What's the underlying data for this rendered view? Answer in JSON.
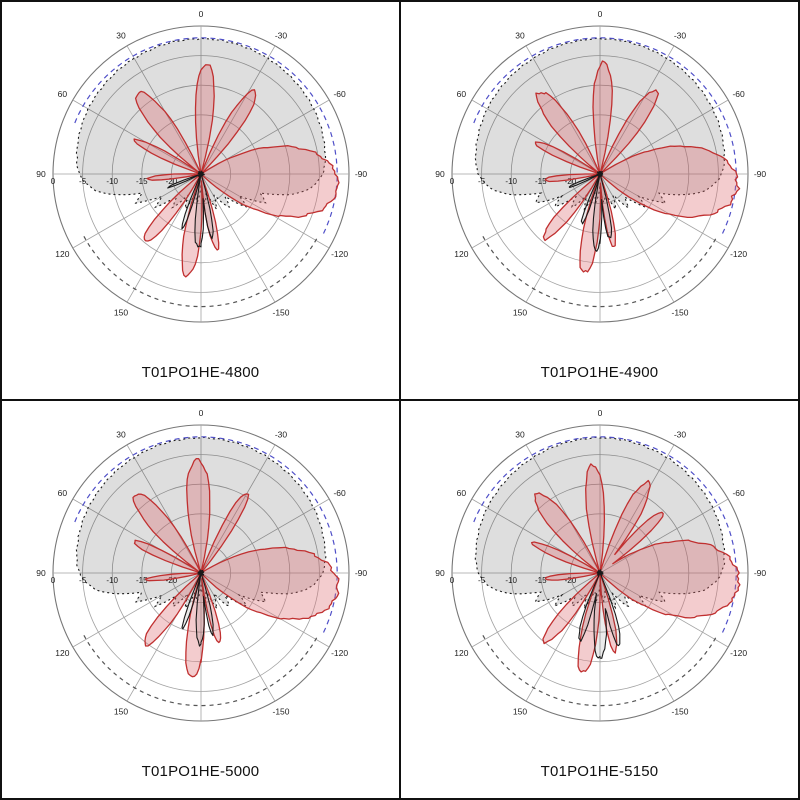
{
  "chart_data": {
    "type": "polar",
    "description": "2x2 grid of antenna radiation pattern polar plots at four frequencies",
    "angle_ticks_deg": [
      0,
      -30,
      -60,
      -90,
      -120,
      -150,
      150,
      120,
      90,
      60,
      30
    ],
    "angle_tick_labels": [
      "0",
      "-30",
      "-60",
      "-90",
      "-120",
      "-150",
      "150",
      "120",
      "90",
      "60",
      "30"
    ],
    "radial_ticks_db": [
      0,
      -5,
      -10,
      -15,
      -20
    ],
    "radial_tick_labels": [
      "0",
      "-5",
      "-10",
      "-15",
      "-20"
    ],
    "r_min_db": -25,
    "grid": true,
    "colors": {
      "grid": "#a3a3a3",
      "outer_ring": "#777777",
      "envelope_fill": "rgba(0,0,0,0.13)",
      "envelope_stroke": "#1a1a1a",
      "copol_stroke": "#c03030",
      "copol_fill": "rgba(222,110,115,0.35)",
      "crosspol_stroke": "#1a1a1a",
      "crosspol_fill": "rgba(60,60,60,0.10)",
      "ref_arc_blue": "#5050c8",
      "ref_arc_dark": "#555555"
    },
    "reference_arcs": [
      {
        "name": "blue-dashed-arc",
        "r_db": -2.0,
        "start_deg": 68,
        "end_deg": -116,
        "color": "#5050c8",
        "dash": "5 4"
      },
      {
        "name": "dark-dashed-arc",
        "r_db": -2.6,
        "start_deg": 118,
        "end_deg": 242,
        "color": "#555555",
        "dash": "4 4"
      }
    ],
    "envelope_points": [
      [
        -180,
        -23
      ],
      [
        -172,
        -20
      ],
      [
        -164,
        -22
      ],
      [
        -156,
        -18.5
      ],
      [
        -148,
        -21
      ],
      [
        -140,
        -17.5
      ],
      [
        -133,
        -19.5
      ],
      [
        -126,
        -15.5
      ],
      [
        -120,
        -17.5
      ],
      [
        -114,
        -13
      ],
      [
        -108,
        -14.5
      ],
      [
        -103,
        -9.5
      ],
      [
        -99,
        -7
      ],
      [
        -95,
        -5.6
      ],
      [
        -91,
        -4.6
      ],
      [
        -86,
        -4.0
      ],
      [
        -80,
        -3.7
      ],
      [
        -70,
        -3.3
      ],
      [
        -60,
        -3.0
      ],
      [
        -50,
        -2.8
      ],
      [
        -40,
        -2.6
      ],
      [
        -30,
        -2.45
      ],
      [
        -20,
        -2.3
      ],
      [
        -10,
        -2.2
      ],
      [
        0,
        -2.15
      ],
      [
        10,
        -2.2
      ],
      [
        20,
        -2.3
      ],
      [
        30,
        -2.45
      ],
      [
        40,
        -2.6
      ],
      [
        50,
        -2.8
      ],
      [
        60,
        -3.0
      ],
      [
        70,
        -3.3
      ],
      [
        80,
        -3.7
      ],
      [
        86,
        -4.0
      ],
      [
        91,
        -4.6
      ],
      [
        95,
        -5.6
      ],
      [
        99,
        -7
      ],
      [
        103,
        -9.5
      ],
      [
        108,
        -14.5
      ],
      [
        114,
        -13
      ],
      [
        120,
        -17.5
      ],
      [
        126,
        -15.5
      ],
      [
        133,
        -19.5
      ],
      [
        140,
        -17.5
      ],
      [
        148,
        -21
      ],
      [
        156,
        -18.5
      ],
      [
        164,
        -22
      ],
      [
        172,
        -20
      ],
      [
        180,
        -23
      ]
    ],
    "lobe_format": "[center_deg, halfwidth_3dB_deg, peak_db]",
    "panels": [
      {
        "title": "T01PO1HE-4800",
        "noise_seed": 1,
        "copol_lobes": [
          [
            -95,
            14,
            -1.8
          ],
          [
            -33,
            5,
            -8.3
          ],
          [
            -3,
            5,
            -6.4
          ],
          [
            38,
            6,
            -7.6
          ],
          [
            63,
            4,
            -12.5
          ],
          [
            95,
            4,
            -16
          ],
          [
            140,
            5,
            -10.2
          ],
          [
            172,
            5,
            -7.6
          ],
          [
            192,
            4,
            -12
          ]
        ],
        "crosspol_lobes": [
          [
            178,
            4,
            -12.4
          ],
          [
            161,
            3,
            -15.4
          ],
          [
            190,
            3.5,
            -14.2
          ],
          [
            112,
            3,
            -19
          ]
        ]
      },
      {
        "title": "T01PO1HE-4900",
        "noise_seed": 2,
        "copol_lobes": [
          [
            -95,
            14,
            -1.7
          ],
          [
            -34,
            5,
            -8.0
          ],
          [
            -2,
            5,
            -6.2
          ],
          [
            37,
            6,
            -7.8
          ],
          [
            64,
            4,
            -12.8
          ],
          [
            96,
            4,
            -15.5
          ],
          [
            139,
            5,
            -10.6
          ],
          [
            171,
            5,
            -8.1
          ],
          [
            191,
            4,
            -12.5
          ]
        ],
        "crosspol_lobes": [
          [
            177,
            4,
            -12.1
          ],
          [
            160,
            3,
            -15.8
          ],
          [
            189,
            3.5,
            -13.8
          ],
          [
            113,
            3,
            -19
          ]
        ]
      },
      {
        "title": "T01PO1HE-5000",
        "noise_seed": 3,
        "copol_lobes": [
          [
            -97,
            14,
            -1.7
          ],
          [
            -30,
            4,
            -9.4
          ],
          [
            2,
            6,
            -5.9
          ],
          [
            40,
            6,
            -7.7
          ],
          [
            65,
            4,
            -12.4
          ],
          [
            97,
            4,
            -15.8
          ],
          [
            142,
            5,
            -9.6
          ],
          [
            175,
            5,
            -7.3
          ],
          [
            195,
            4,
            -12.8
          ]
        ],
        "crosspol_lobes": [
          [
            179,
            4,
            -12.8
          ],
          [
            162,
            3,
            -15.2
          ],
          [
            191,
            3.5,
            -14.6
          ]
        ]
      },
      {
        "title": "T01PO1HE-5150",
        "noise_seed": 4,
        "copol_lobes": [
          [
            -94,
            15,
            -1.5
          ],
          [
            -28,
            5,
            -7.7
          ],
          [
            -46,
            4,
            -10.2
          ],
          [
            4,
            5,
            -6.7
          ],
          [
            39,
            6,
            -7.9
          ],
          [
            66,
            4,
            -12.6
          ],
          [
            96,
            4,
            -15.6
          ],
          [
            141,
            5,
            -10.0
          ],
          [
            170,
            5,
            -7.9
          ],
          [
            191,
            4,
            -11.5
          ]
        ],
        "crosspol_lobes": [
          [
            180,
            5,
            -10.6
          ],
          [
            163,
            4,
            -13.2
          ],
          [
            195,
            4,
            -12.4
          ]
        ]
      }
    ]
  }
}
